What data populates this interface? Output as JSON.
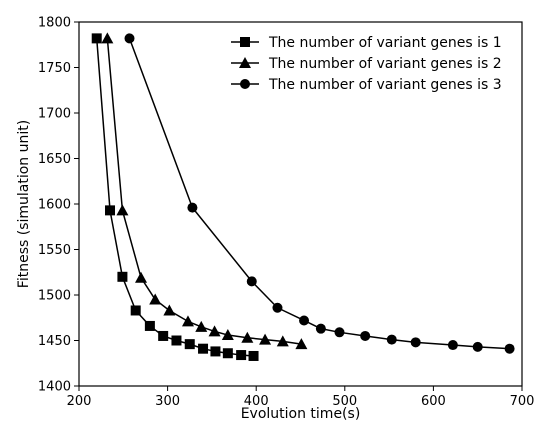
{
  "chart_data": {
    "type": "line",
    "title": "",
    "xlabel": "Evolution time(s)",
    "ylabel": "Fitness (simulation unit)",
    "xlim": [
      200,
      700
    ],
    "ylim": [
      1400,
      1800
    ],
    "xticks": [
      200,
      300,
      400,
      500,
      600,
      700
    ],
    "yticks": [
      1400,
      1450,
      1500,
      1550,
      1600,
      1650,
      1700,
      1750,
      1800
    ],
    "xtick_labels": [
      "200",
      "300",
      "400",
      "500",
      "600",
      "700"
    ],
    "ytick_labels": [
      "1400",
      "1450",
      "1500",
      "1550",
      "1600",
      "1650",
      "1700",
      "1750",
      "1800"
    ],
    "grid": false,
    "legend_position": "top-right",
    "line_color": "#000000",
    "series": [
      {
        "name": "The number of variant genes is 1",
        "marker": "square",
        "x": [
          220,
          235,
          249,
          264,
          280,
          295,
          310,
          325,
          340,
          354,
          368,
          383,
          397
        ],
        "y": [
          1782,
          1593,
          1520,
          1483,
          1466,
          1455,
          1450,
          1446,
          1441,
          1438,
          1436,
          1434,
          1433
        ]
      },
      {
        "name": "The number of variant genes is 2",
        "marker": "triangle",
        "x": [
          232,
          249,
          270,
          286,
          302,
          323,
          338,
          353,
          368,
          390,
          410,
          430,
          451
        ],
        "y": [
          1782,
          1593,
          1519,
          1495,
          1483,
          1471,
          1465,
          1460,
          1456,
          1453,
          1451,
          1449,
          1446
        ]
      },
      {
        "name": "The number of variant genes is 3",
        "marker": "circle",
        "x": [
          257,
          328,
          395,
          424,
          454,
          473,
          494,
          523,
          553,
          580,
          622,
          650,
          686
        ],
        "y": [
          1782,
          1596,
          1515,
          1486,
          1472,
          1463,
          1459,
          1455,
          1451,
          1448,
          1445,
          1443,
          1441
        ]
      }
    ]
  }
}
